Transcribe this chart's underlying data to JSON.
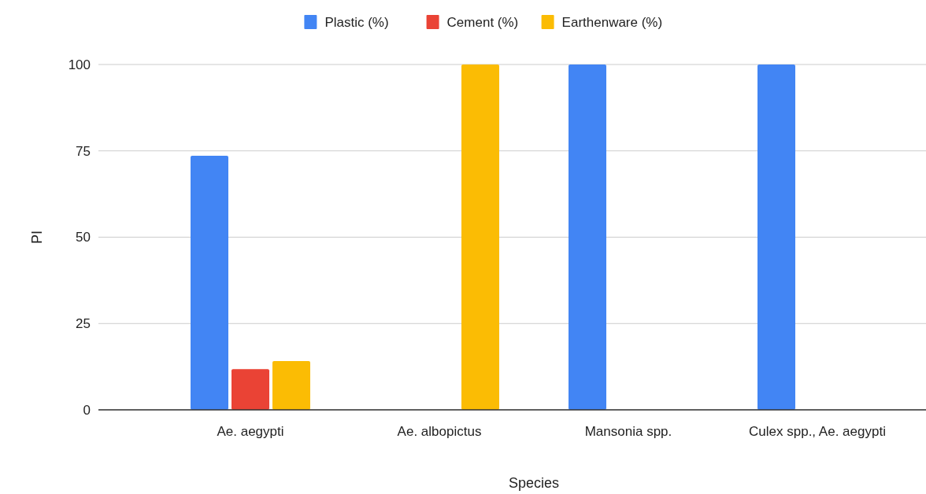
{
  "chart_data": {
    "type": "bar",
    "xlabel": "Species",
    "ylabel": "PI",
    "categories": [
      "Ae. aegypti",
      "Ae. albopictus",
      "Mansonia spp.",
      "Culex spp., Ae. aegypti"
    ],
    "series": [
      {
        "name": "Plastic (%)",
        "color": "#4285f4",
        "values": [
          73.6,
          0,
          100,
          100
        ]
      },
      {
        "name": "Cement (%)",
        "color": "#ea4335",
        "values": [
          11.8,
          0,
          0,
          0
        ]
      },
      {
        "name": "Earthenware (%)",
        "color": "#fbbc04",
        "values": [
          14.1,
          100,
          0,
          0
        ]
      }
    ],
    "ylim": [
      0,
      100
    ],
    "yticks": [
      0,
      25,
      50,
      75,
      100
    ],
    "grid": "y",
    "legend": "top"
  }
}
